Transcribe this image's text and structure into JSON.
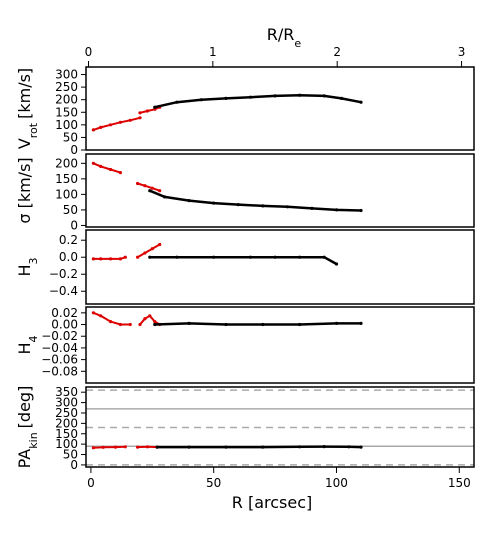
{
  "chart_data": {
    "type": "line",
    "top_axis": {
      "label_main": "R/R",
      "label_sub": "e",
      "ticks": [
        0,
        1,
        2,
        3
      ],
      "range": [
        -0.02,
        3.1
      ]
    },
    "bottom_axis": {
      "label": "R [arcsec]",
      "ticks": [
        0,
        50,
        100,
        150
      ],
      "range": [
        -2,
        156
      ]
    },
    "colors": {
      "frame": "#000000",
      "red_series": "#dd0000",
      "black_series": "#000000",
      "ref_solid": "#aaaaaa",
      "ref_dashed": "#aaaaaa"
    },
    "panels": [
      {
        "id": "vrot",
        "ylabel_main": "V",
        "ylabel_sub": "rot",
        "ylabel_tail": "[km/s]",
        "ylim": [
          0,
          330
        ],
        "yticks": [
          0,
          50,
          100,
          150,
          200,
          250,
          300
        ],
        "ytick_labels": [
          "0",
          "50",
          "100",
          "150",
          "200",
          "250",
          "300"
        ],
        "series": [
          {
            "color": "red",
            "x": [
              1,
              4,
              8,
              12,
              16,
              20
            ],
            "y": [
              80,
              90,
              100,
              110,
              118,
              128
            ]
          },
          {
            "color": "red",
            "x": [
              20,
              23,
              26,
              28
            ],
            "y": [
              148,
              155,
              162,
              170
            ]
          },
          {
            "color": "black",
            "x": [
              26,
              35,
              45,
              55,
              65,
              75,
              85,
              95,
              102,
              110
            ],
            "y": [
              170,
              190,
              200,
              205,
              210,
              215,
              218,
              215,
              205,
              190
            ]
          }
        ]
      },
      {
        "id": "sigma",
        "ylabel_main": "σ [km/s]",
        "ylim": [
          -5,
          230
        ],
        "yticks": [
          0,
          50,
          100,
          150,
          200
        ],
        "ytick_labels": [
          "0",
          "50",
          "100",
          "150",
          "200"
        ],
        "series": [
          {
            "color": "red",
            "x": [
              1,
              4,
              8,
              12
            ],
            "y": [
              200,
              190,
              180,
              170
            ]
          },
          {
            "color": "red",
            "x": [
              19,
              22,
              25,
              28
            ],
            "y": [
              135,
              128,
              120,
              112
            ]
          },
          {
            "color": "black",
            "x": [
              24,
              30,
              40,
              50,
              60,
              70,
              80,
              90,
              100,
              110
            ],
            "y": [
              112,
              92,
              80,
              72,
              67,
              63,
              60,
              55,
              50,
              48
            ]
          }
        ]
      },
      {
        "id": "h3",
        "ylabel_main": "H",
        "ylabel_sub": "3",
        "ylim": [
          -0.55,
          0.32
        ],
        "yticks": [
          -0.4,
          -0.2,
          0.0,
          0.2
        ],
        "ytick_labels": [
          "−0.4",
          "−0.2",
          "0.0",
          "0.2"
        ],
        "series": [
          {
            "color": "red",
            "x": [
              1,
              4,
              8,
              12,
              14
            ],
            "y": [
              -0.02,
              -0.02,
              -0.02,
              -0.02,
              0.0
            ]
          },
          {
            "color": "red",
            "x": [
              19,
              22,
              25,
              28
            ],
            "y": [
              0.0,
              0.05,
              0.1,
              0.15
            ]
          },
          {
            "color": "black",
            "x": [
              24,
              35,
              50,
              65,
              75,
              85,
              95,
              100
            ],
            "y": [
              0.0,
              0.0,
              0.0,
              0.0,
              0.0,
              0.0,
              0.0,
              -0.08
            ]
          }
        ]
      },
      {
        "id": "h4",
        "ylabel_main": "H",
        "ylabel_sub": "4",
        "ylim": [
          -0.1,
          0.03
        ],
        "yticks": [
          -0.08,
          -0.06,
          -0.04,
          -0.02,
          0.0,
          0.02
        ],
        "ytick_labels": [
          "−0.08",
          "−0.06",
          "−0.04",
          "−0.02",
          "0.00",
          "0.02"
        ],
        "series": [
          {
            "color": "red",
            "x": [
              1,
              4,
              8,
              12,
              16
            ],
            "y": [
              0.02,
              0.015,
              0.005,
              0.0,
              0.0
            ]
          },
          {
            "color": "red",
            "x": [
              20,
              22,
              24,
              26,
              28
            ],
            "y": [
              0.0,
              0.01,
              0.015,
              0.005,
              0.0
            ]
          },
          {
            "color": "black",
            "x": [
              26,
              40,
              55,
              70,
              85,
              100,
              110
            ],
            "y": [
              0.0,
              0.002,
              0.0,
              0.0,
              0.0,
              0.002,
              0.002
            ]
          }
        ]
      },
      {
        "id": "pakin",
        "ylabel_main": "PA",
        "ylabel_sub": "kin",
        "ylabel_tail": "[deg]",
        "ylim": [
          -10,
          375
        ],
        "yticks": [
          0,
          50,
          100,
          150,
          200,
          250,
          300,
          350
        ],
        "ytick_labels": [
          "0",
          "50",
          "100",
          "150",
          "200",
          "250",
          "300",
          "350"
        ],
        "hlines_solid": [
          90,
          270
        ],
        "hlines_dashed": [
          0,
          180,
          360
        ],
        "series": [
          {
            "color": "red",
            "x": [
              1,
              5,
              10,
              14
            ],
            "y": [
              83,
              85,
              86,
              87
            ]
          },
          {
            "color": "red",
            "x": [
              19,
              23,
              27
            ],
            "y": [
              86,
              87,
              86
            ]
          },
          {
            "color": "black",
            "x": [
              27,
              40,
              55,
              70,
              85,
              95,
              105,
              110
            ],
            "y": [
              86,
              86,
              86,
              86,
              87,
              88,
              87,
              86
            ]
          }
        ]
      }
    ]
  }
}
